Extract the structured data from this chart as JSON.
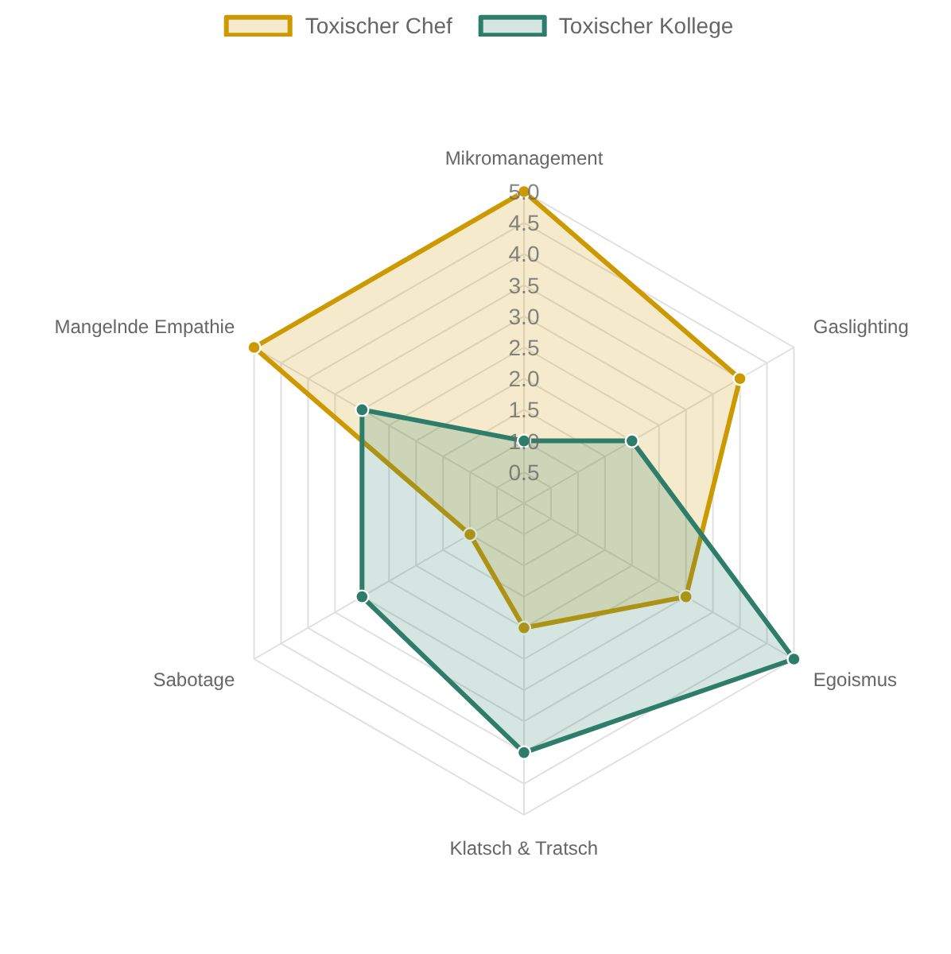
{
  "chart_data": {
    "type": "radar",
    "categories": [
      "Mikromanagement",
      "Gaslighting",
      "Egoismus",
      "Klatsch & Tratsch",
      "Sabotage",
      "Mangelnde Empathie"
    ],
    "series": [
      {
        "name": "Toxischer Chef",
        "color": "#cc9900",
        "values": [
          5,
          4,
          3,
          2,
          1,
          5
        ]
      },
      {
        "name": "Toxischer Kollege",
        "color": "#2e7d6b",
        "values": [
          1,
          2,
          5,
          4,
          3,
          3
        ]
      }
    ],
    "ylim": [
      0,
      5
    ],
    "yticks": [
      0.5,
      {
        "value": 1,
        "label": "1.0"
      },
      1.5,
      {
        "value": 2,
        "label": "2.0"
      },
      2.5,
      {
        "value": 3,
        "label": "3.0"
      },
      3.5,
      {
        "value": 4,
        "label": "4.0"
      },
      4.5,
      {
        "value": 5,
        "label": "5.0"
      }
    ],
    "grid": true,
    "legend": "top",
    "marker": "circle",
    "line_style": "solid"
  }
}
